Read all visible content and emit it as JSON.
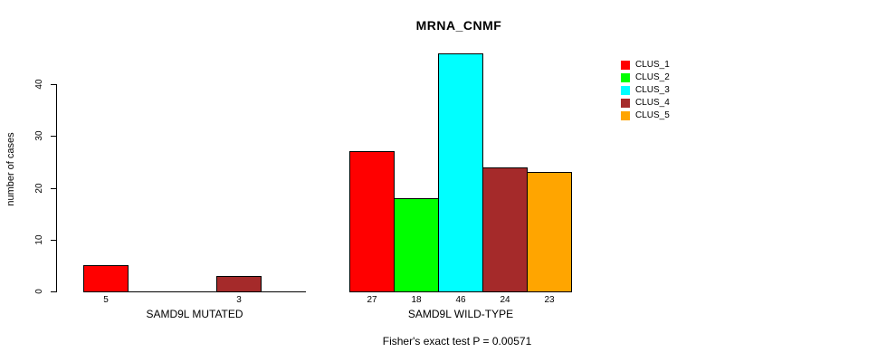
{
  "page": {
    "background_color": "#ffffff"
  },
  "chart_data": {
    "type": "bar",
    "title": "MRNA_CNMF",
    "ylabel": "number of cases",
    "xlabel": "",
    "yticks": [
      0,
      10,
      20,
      30,
      40
    ],
    "ylim": [
      0,
      46
    ],
    "grid": false,
    "bar_border_color": "#000000",
    "legend_position": "top-right-outside",
    "categories": [
      "SAMD9L MUTATED",
      "SAMD9L WILD-TYPE"
    ],
    "series": [
      {
        "name": "CLUS_1",
        "color": "#FF0000",
        "values": [
          5,
          27
        ]
      },
      {
        "name": "CLUS_2",
        "color": "#00FF00",
        "values": [
          0,
          18
        ]
      },
      {
        "name": "CLUS_3",
        "color": "#00FFFF",
        "values": [
          0,
          46
        ]
      },
      {
        "name": "CLUS_4",
        "color": "#A52A2A",
        "values": [
          3,
          24
        ]
      },
      {
        "name": "CLUS_5",
        "color": "#FFA500",
        "values": [
          0,
          23
        ]
      }
    ],
    "visible_bar_value_labels": {
      "SAMD9L MUTATED": [
        "5",
        "3"
      ],
      "SAMD9L WILD-TYPE": [
        "27",
        "18",
        "46",
        "24",
        "23"
      ]
    },
    "annotation": "Fisher's exact test P = 0.00571"
  }
}
